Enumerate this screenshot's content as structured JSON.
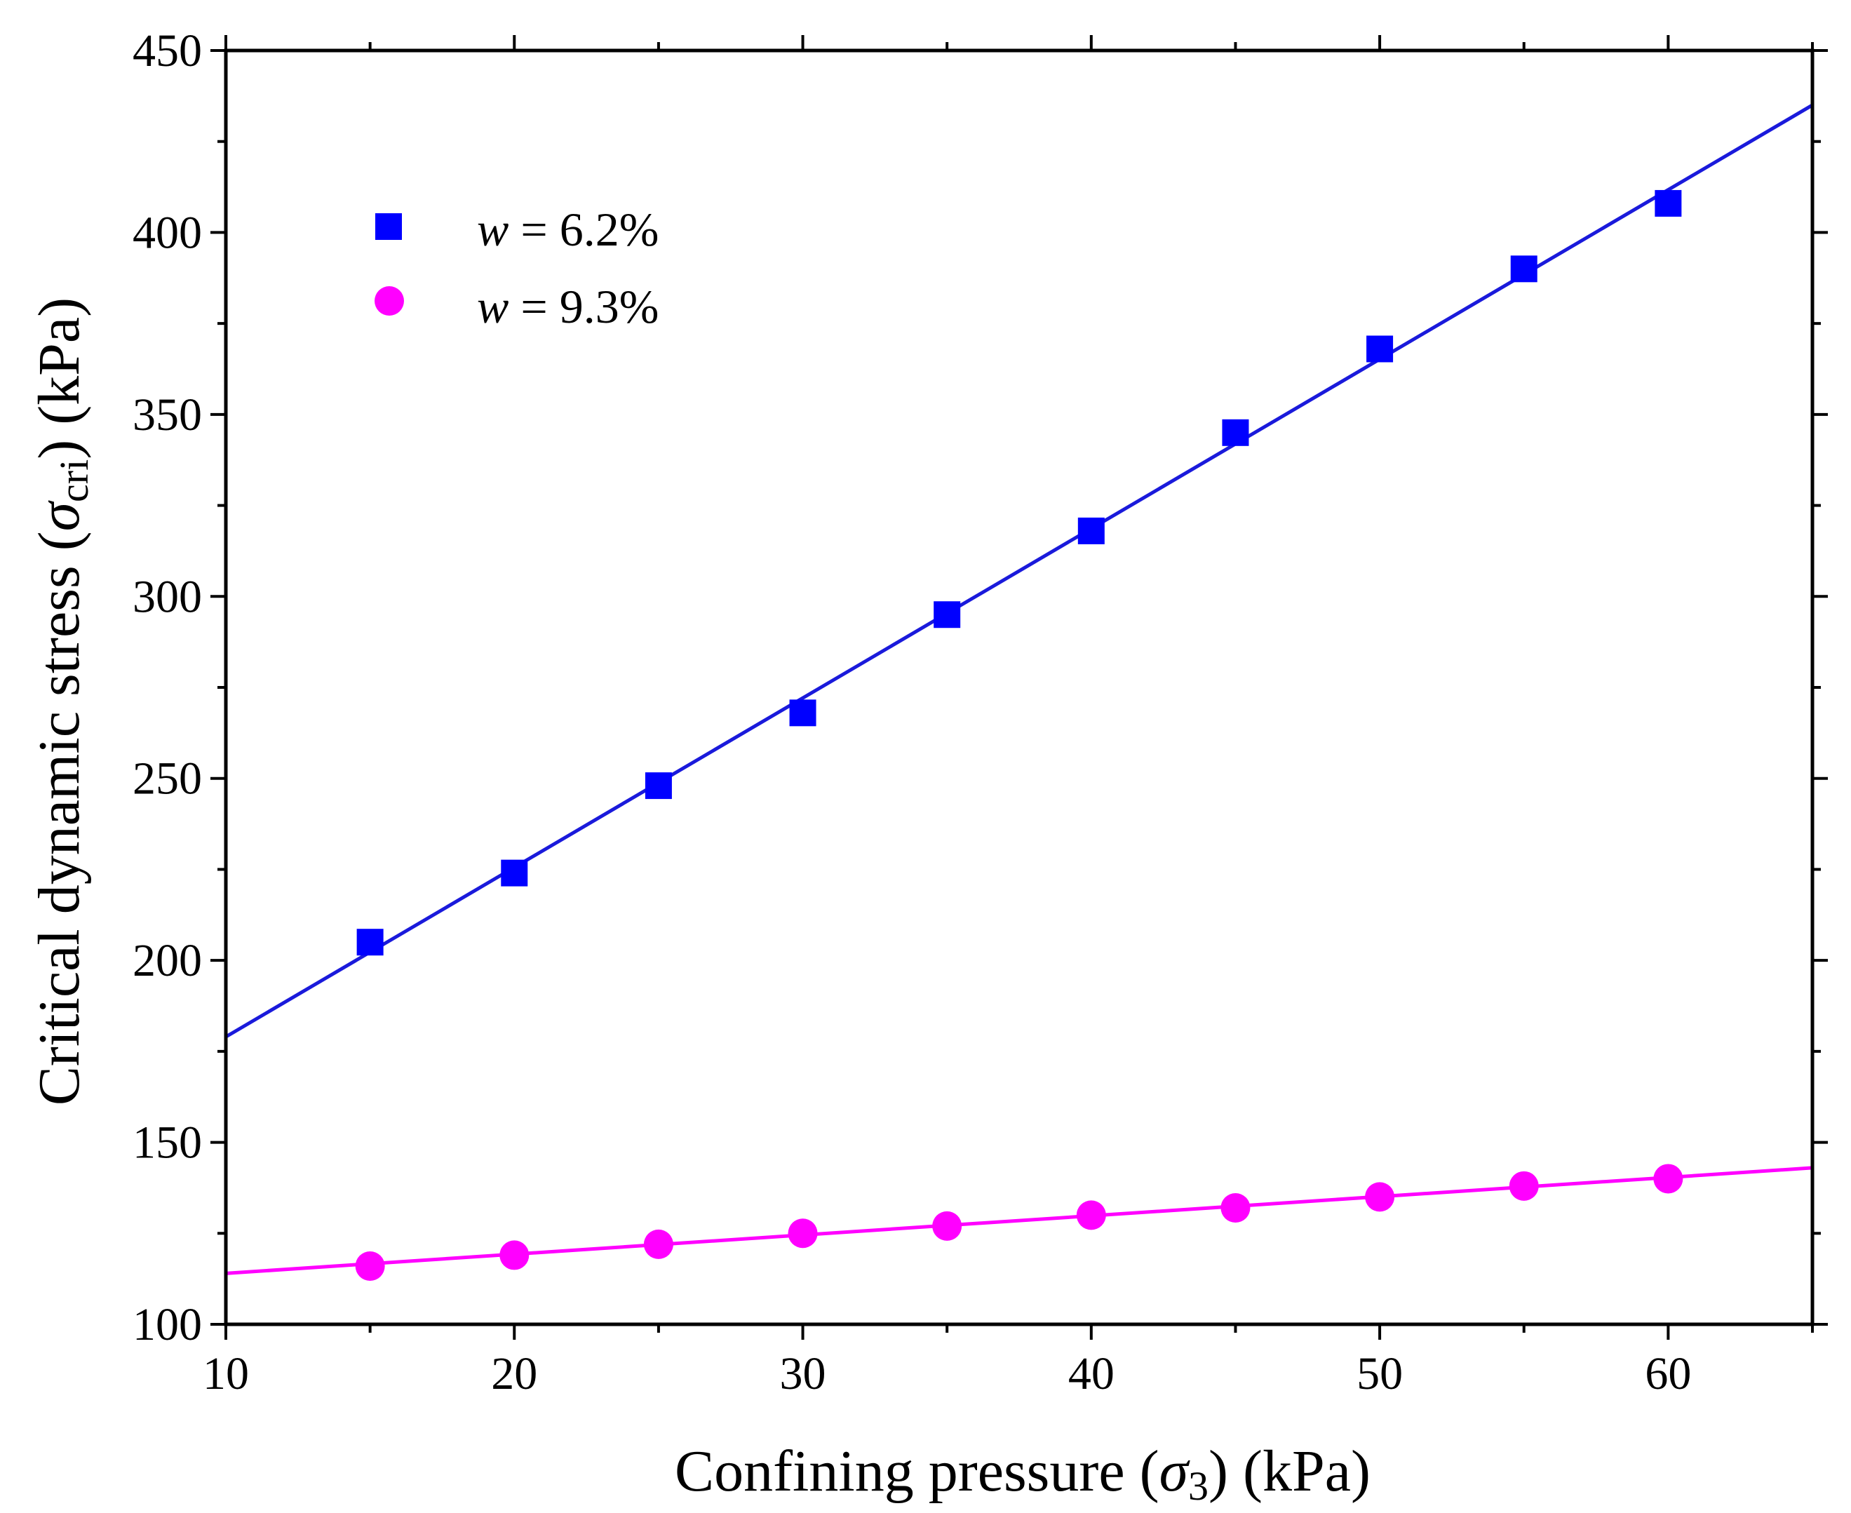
{
  "chart_data": {
    "type": "scatter",
    "title": "",
    "xlabel": {
      "prefix": "Confining pressure (",
      "symbol": "σ",
      "subscript": "3",
      "suffix": ") (kPa)"
    },
    "ylabel": {
      "prefix": "Critical dynamic stress (",
      "symbol": "σ",
      "subscript": "cri",
      "suffix": ") (kPa)"
    },
    "xlim": [
      10,
      65
    ],
    "ylim": [
      100,
      450
    ],
    "x_ticks": [
      10,
      20,
      30,
      40,
      50,
      60
    ],
    "y_ticks": [
      100,
      150,
      200,
      250,
      300,
      350,
      400,
      450
    ],
    "legend_position": "top-left",
    "series": [
      {
        "name": "w = 6.2%",
        "legend_var": "w",
        "legend_rest": " = 6.2%",
        "marker": "square",
        "color": "#0000ff",
        "line_color": "#1a1adb",
        "x": [
          15,
          20,
          25,
          30,
          35,
          40,
          45,
          50,
          55,
          60
        ],
        "values": [
          205,
          224,
          248,
          268,
          295,
          318,
          345,
          368,
          390,
          408
        ],
        "fit": {
          "x": [
            10,
            65
          ],
          "y": [
            179,
            435
          ]
        }
      },
      {
        "name": "w = 9.3%",
        "legend_var": "w",
        "legend_rest": " = 9.3%",
        "marker": "circle",
        "color": "#ff00ff",
        "line_color": "#ff00ff",
        "x": [
          15,
          20,
          25,
          30,
          35,
          40,
          45,
          50,
          55,
          60
        ],
        "values": [
          116,
          119,
          122,
          125,
          127,
          130,
          132,
          135,
          138,
          140
        ],
        "fit": {
          "x": [
            10,
            65
          ],
          "y": [
            114,
            143
          ]
        }
      }
    ]
  }
}
